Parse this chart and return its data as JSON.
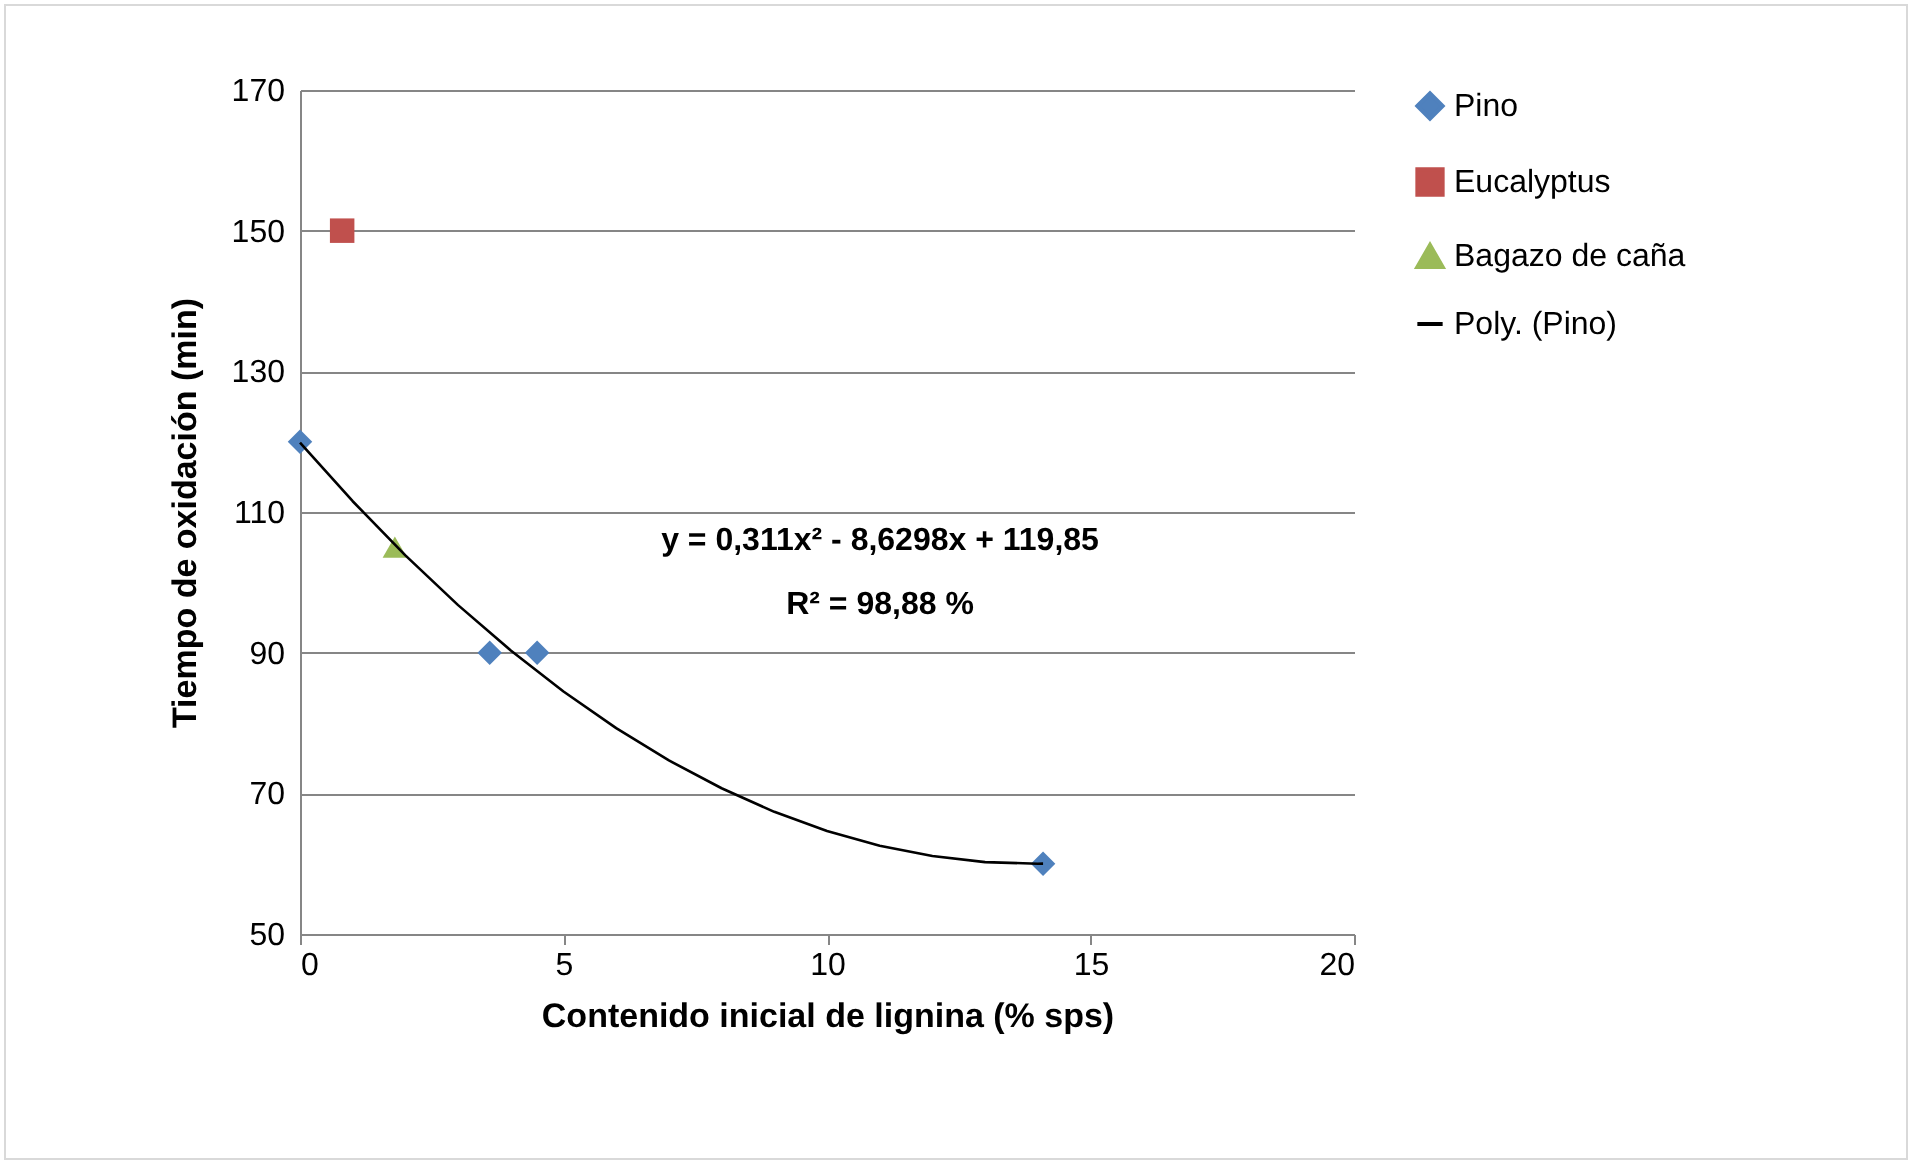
{
  "chart_data": {
    "type": "scatter",
    "xlabel": "Contenido inicial de lignina (% sps)",
    "ylabel": "Tiempo de oxidación (min)",
    "xlim": [
      0,
      20
    ],
    "xticks": [
      0,
      5,
      10,
      15,
      20
    ],
    "ylim": [
      50,
      170
    ],
    "yticks": [
      50,
      70,
      90,
      110,
      130,
      150,
      170
    ],
    "grid": "y",
    "legend": "right",
    "annotations": [
      "y = 0,311x² - 8,6298x + 119,85",
      "R² = 98,88 %"
    ],
    "series": [
      {
        "name": "Pino",
        "color": "#4f81bd",
        "marker": "diamond",
        "x": [
          0,
          3.6,
          4.5,
          14.1
        ],
        "values": [
          120,
          90,
          90,
          60
        ]
      },
      {
        "name": "Eucalyptus",
        "color": "#c0504d",
        "marker": "square",
        "x": [
          0.8
        ],
        "values": [
          150
        ]
      },
      {
        "name": "Bagazo de caña",
        "color": "#9bbb59",
        "marker": "triangle",
        "x": [
          1.8
        ],
        "values": [
          105
        ]
      },
      {
        "name": "Poly. (Pino)",
        "type": "line",
        "color": "#000000",
        "line_style": "solid",
        "x": [
          0,
          1,
          2,
          3,
          4,
          5,
          6,
          7,
          8,
          9,
          10,
          11,
          12,
          13,
          14,
          14.1
        ],
        "values": [
          119.85,
          111.53,
          103.83,
          96.76,
          90.31,
          84.48,
          79.27,
          74.68,
          70.72,
          67.37,
          64.65,
          62.55,
          61.08,
          60.22,
          59.99,
          60
        ]
      }
    ]
  }
}
